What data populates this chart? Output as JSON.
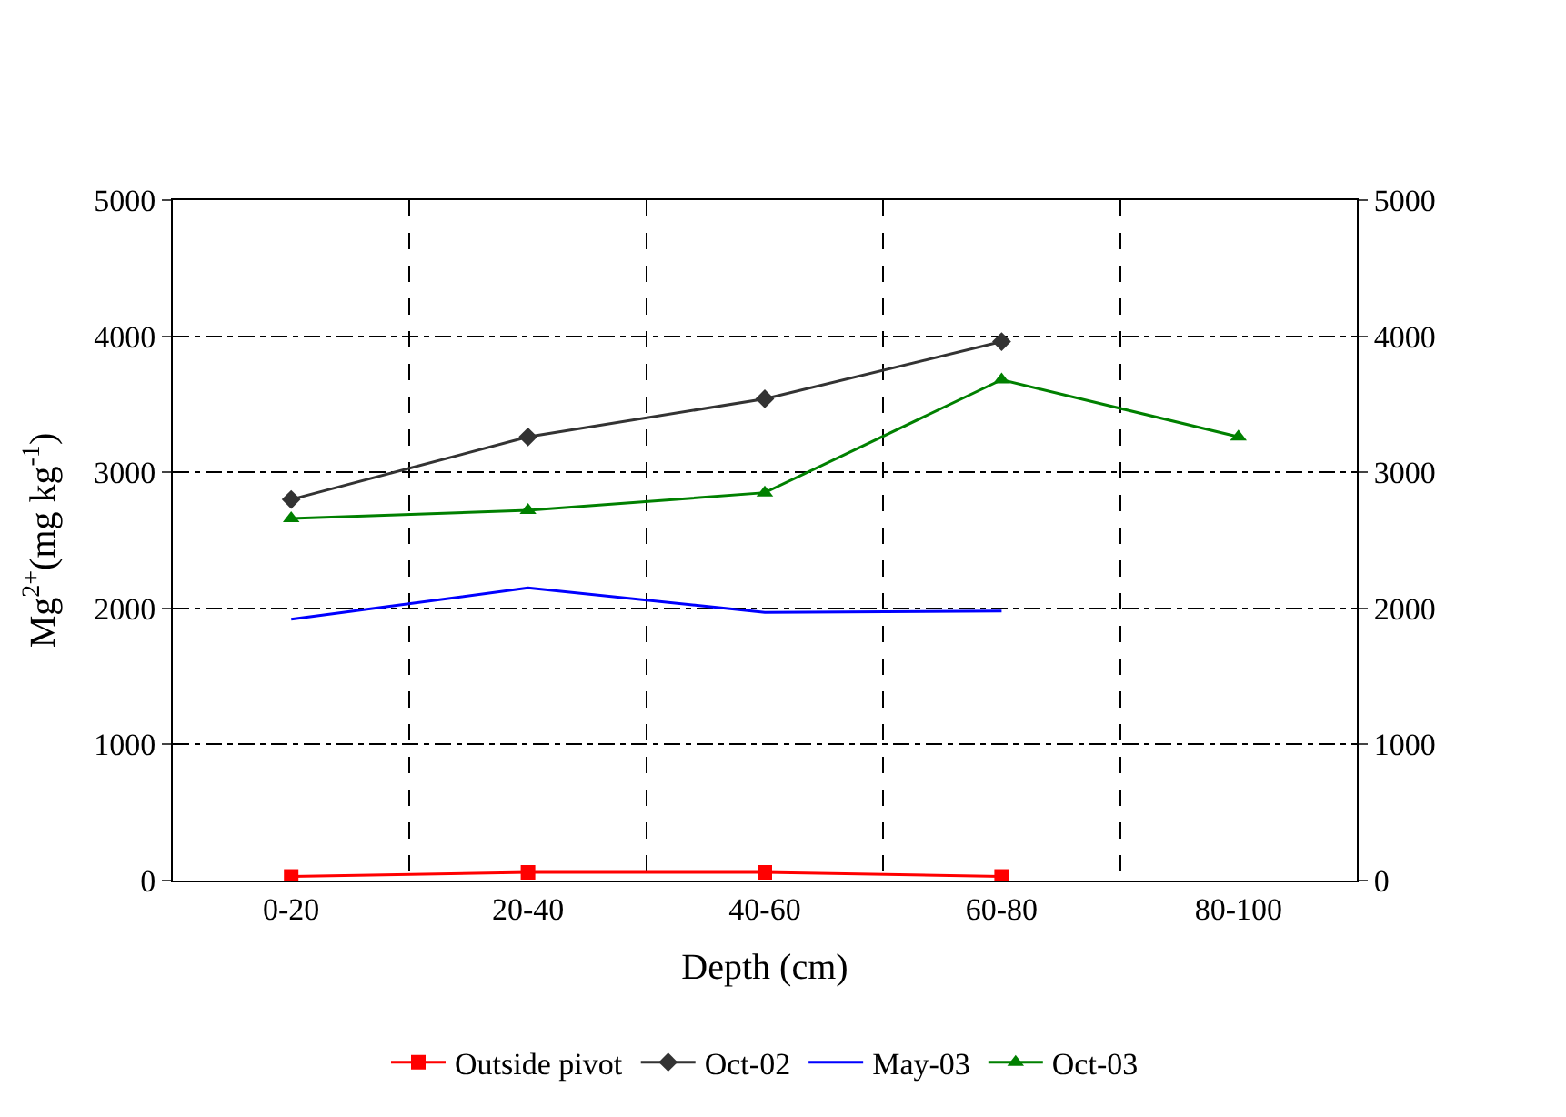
{
  "chart_data": {
    "type": "line",
    "xlabel": "Depth (cm)",
    "ylabel": "Mg$^{2+}$(mg kg$^{-1}$)",
    "categories": [
      "0-20",
      "20-40",
      "40-60",
      "60-80",
      "80-100"
    ],
    "series": [
      {
        "name": "Outside pivot",
        "color": "#ff0000",
        "marker": "square",
        "values": [
          30,
          60,
          60,
          30,
          null
        ]
      },
      {
        "name": "Oct-02",
        "color": "#333333",
        "marker": "diamond",
        "values": [
          2800,
          3260,
          3540,
          3960,
          null
        ]
      },
      {
        "name": "May-03",
        "color": "#0000ff",
        "marker": "none",
        "values": [
          1920,
          2150,
          1970,
          1980,
          null
        ]
      },
      {
        "name": "Oct-03",
        "color": "#008000",
        "marker": "triangle",
        "values": [
          2660,
          2720,
          2850,
          3680,
          3260
        ]
      }
    ],
    "ylim": [
      0,
      5000
    ],
    "yticks": [
      0,
      1000,
      2000,
      3000,
      4000,
      5000
    ],
    "y2lim": [
      0,
      5000
    ],
    "y2ticks": [
      0,
      1000,
      2000,
      3000,
      4000,
      5000
    ],
    "grid": true,
    "legend": "bottom"
  }
}
